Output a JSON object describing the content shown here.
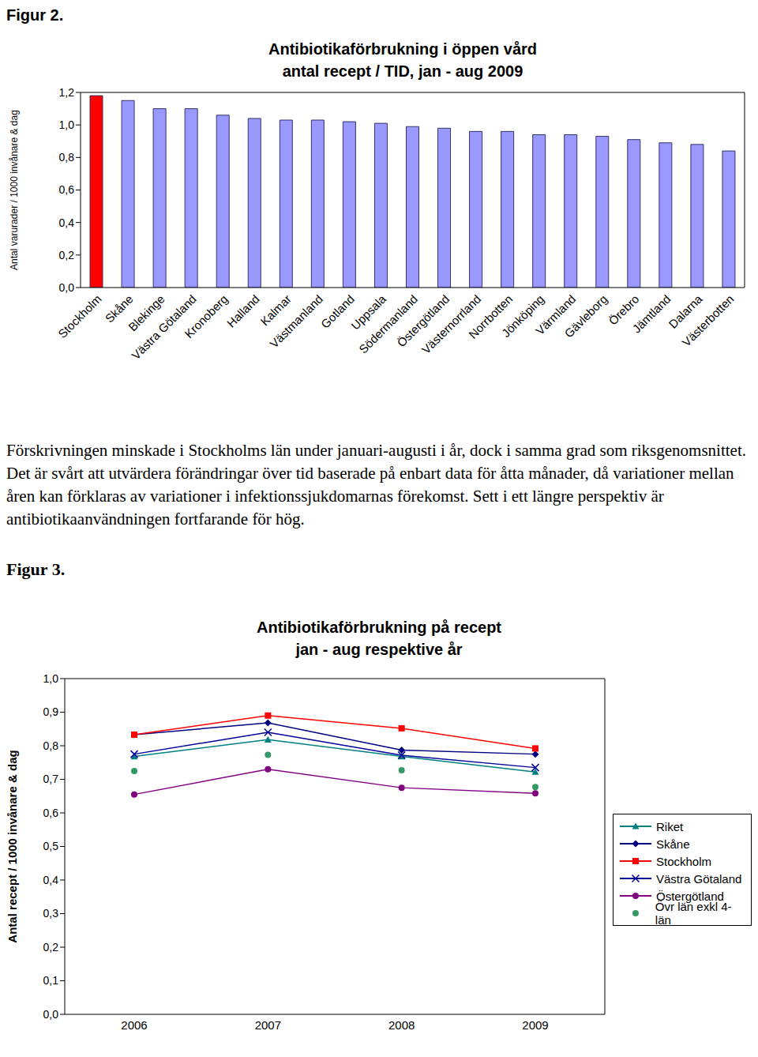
{
  "text": {
    "figure2_label": "Figur 2.",
    "paragraph": "Förskrivningen minskade i Stockholms län under januari-augusti i år, dock i samma grad som riksgenomsnittet. Det är svårt att utvärdera förändringar över tid baserade på enbart data för åtta månader, då variationer mellan åren kan förklaras av variationer i infektionssjukdomarnas förekomst. Sett i ett längre perspektiv är antibiotikaanvändningen fortfarande för hög.",
    "figure3_label": "Figur 3."
  },
  "chart_data": [
    {
      "type": "bar",
      "title": "Antibiotikaförbrukning i öppen vård",
      "subtitle": "antal recept / TID, jan - aug 2009",
      "y_label": "Antal varurader / 1000 invånare & dag",
      "categories": [
        "Stockholm",
        "Skåne",
        "Blekinge",
        "Västra Götaland",
        "Kronoberg",
        "Halland",
        "Kalmar",
        "Västmanland",
        "Gotland",
        "Uppsala",
        "Södermanland",
        "Östergötland",
        "Västernorrland",
        "Norrbotten",
        "Jönköping",
        "Värmland",
        "Gävleborg",
        "Örebro",
        "Jämtland",
        "Dalarna",
        "Västerbotten"
      ],
      "values": [
        1.18,
        1.15,
        1.1,
        1.1,
        1.06,
        1.04,
        1.03,
        1.03,
        1.02,
        1.01,
        0.99,
        0.98,
        0.96,
        0.96,
        0.94,
        0.94,
        0.93,
        0.91,
        0.89,
        0.88,
        0.84
      ],
      "colors": [
        "#ff0000",
        "#9999ff",
        "#9999ff",
        "#9999ff",
        "#9999ff",
        "#9999ff",
        "#9999ff",
        "#9999ff",
        "#9999ff",
        "#9999ff",
        "#9999ff",
        "#9999ff",
        "#9999ff",
        "#9999ff",
        "#9999ff",
        "#9999ff",
        "#9999ff",
        "#9999ff",
        "#9999ff",
        "#9999ff",
        "#9999ff"
      ],
      "ylim": [
        0,
        1.2
      ],
      "yticks": [
        {
          "value": 0,
          "label": "0,0"
        },
        {
          "value": 0.2,
          "label": "0,2"
        },
        {
          "value": 0.4,
          "label": "0,4"
        },
        {
          "value": 0.6,
          "label": "0,6"
        },
        {
          "value": 0.8,
          "label": "0,8"
        },
        {
          "value": 1.0,
          "label": "1,0"
        },
        {
          "value": 1.2,
          "label": "1,2"
        }
      ],
      "grid": false
    },
    {
      "type": "line",
      "title": "Antibiotikaförbrukning på recept",
      "subtitle": "jan - aug respektive år",
      "y_label": "Antal recept / 1000 invånare & dag",
      "categories": [
        "2006",
        "2007",
        "2008",
        "2009"
      ],
      "series": [
        {
          "name": "Riket",
          "color": "#008080",
          "marker": "triangle",
          "line_style": "solid",
          "values": [
            0.768,
            0.818,
            0.768,
            0.722
          ]
        },
        {
          "name": "Skåne",
          "color": "#000080",
          "marker": "diamond",
          "line_style": "solid",
          "values": [
            0.833,
            0.868,
            0.787,
            0.775
          ]
        },
        {
          "name": "Stockholm",
          "color": "#ff0000",
          "marker": "square",
          "line_style": "solid",
          "values": [
            0.833,
            0.89,
            0.852,
            0.792
          ]
        },
        {
          "name": "Västra Götaland",
          "color": "#000099",
          "marker": "x",
          "line_style": "solid",
          "values": [
            0.775,
            0.84,
            0.772,
            0.735
          ]
        },
        {
          "name": "Östergötland",
          "color": "#800080",
          "marker": "circle",
          "line_style": "solid",
          "values": [
            0.655,
            0.73,
            0.675,
            0.658
          ]
        },
        {
          "name": "Övr län exkl 4-län",
          "color": "#339966",
          "marker": "circle",
          "line_style": "none",
          "values": [
            0.725,
            0.773,
            0.727,
            0.677
          ]
        }
      ],
      "ylim": [
        0,
        1.0
      ],
      "yticks": [
        {
          "value": 0,
          "label": "0,0"
        },
        {
          "value": 0.1,
          "label": "0,1"
        },
        {
          "value": 0.2,
          "label": "0,2"
        },
        {
          "value": 0.3,
          "label": "0,3"
        },
        {
          "value": 0.4,
          "label": "0,4"
        },
        {
          "value": 0.5,
          "label": "0,5"
        },
        {
          "value": 0.6,
          "label": "0,6"
        },
        {
          "value": 0.7,
          "label": "0,7"
        },
        {
          "value": 0.8,
          "label": "0,8"
        },
        {
          "value": 0.9,
          "label": "0,9"
        },
        {
          "value": 1.0,
          "label": "1,0"
        }
      ],
      "grid": false,
      "legend": "right"
    }
  ]
}
